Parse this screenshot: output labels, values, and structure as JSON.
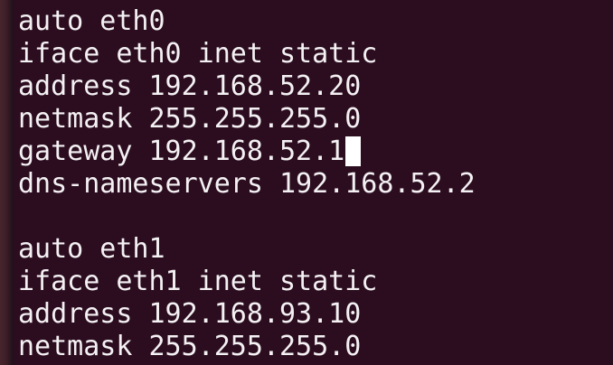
{
  "terminal": {
    "colors": {
      "background": "#2c0d20",
      "text": "#f4f1f3",
      "cursor": "#ffffff",
      "desktop_edge": "#46242e"
    },
    "lines": [
      {
        "text": "auto eth0"
      },
      {
        "text": "iface eth0 inet static"
      },
      {
        "text": "address 192.168.52.20"
      },
      {
        "text": "netmask 255.255.255.0"
      },
      {
        "text": "gateway 192.168.52.1",
        "has_cursor": true
      },
      {
        "text": "dns-nameservers 192.168.52.2"
      },
      {
        "text": ""
      },
      {
        "text": "auto eth1"
      },
      {
        "text": "iface eth1 inet static"
      },
      {
        "text": "address 192.168.93.10"
      },
      {
        "text": "netmask 255.255.255.0"
      }
    ]
  }
}
